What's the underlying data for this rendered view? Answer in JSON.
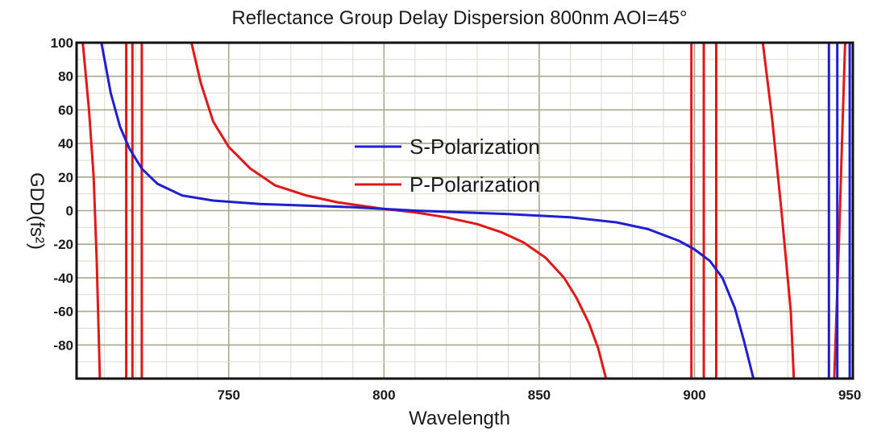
{
  "chart_data": {
    "type": "line",
    "title": "Reflectance Group Delay Dispersion 800nm  AOI=45°",
    "xlabel": "Wavelength",
    "ylabel": "GDD(fs²)",
    "xlim": [
      701,
      951
    ],
    "ylim": [
      -100,
      100
    ],
    "x_ticks": [
      750,
      800,
      850,
      900,
      950
    ],
    "x_tick_labels": [
      "750",
      "800",
      "850",
      "900",
      "950"
    ],
    "y_ticks": [
      100,
      80,
      60,
      40,
      20,
      0,
      -20,
      -40,
      -60,
      -80
    ],
    "y_tick_labels": [
      "100",
      "80",
      "60",
      "40",
      "20",
      "0",
      "-20",
      "-40",
      "-60",
      "-80"
    ],
    "grid": true,
    "legend_position": "center",
    "series": [
      {
        "name": "S-Polarization",
        "color": "#1f1fd0",
        "segments": [
          [
            [
              709,
              100
            ],
            [
              712,
              70
            ],
            [
              715,
              50
            ],
            [
              718,
              37
            ],
            [
              722,
              25
            ],
            [
              727,
              16
            ],
            [
              735,
              9
            ],
            [
              745,
              6
            ],
            [
              760,
              4
            ],
            [
              775,
              3
            ],
            [
              790,
              2
            ],
            [
              800,
              1
            ],
            [
              810,
              0
            ],
            [
              825,
              -1
            ],
            [
              840,
              -2
            ],
            [
              860,
              -4
            ],
            [
              875,
              -7
            ],
            [
              885,
              -11
            ],
            [
              895,
              -18
            ],
            [
              900,
              -23
            ],
            [
              905,
              -30
            ],
            [
              909,
              -40
            ],
            [
              913,
              -58
            ],
            [
              916,
              -78
            ],
            [
              919,
              -100
            ]
          ],
          [
            [
              943.3,
              100
            ],
            [
              943.3,
              -100
            ]
          ],
          [
            [
              946,
              -100
            ],
            [
              946,
              100
            ]
          ],
          [
            [
              950,
              100
            ],
            [
              950,
              -100
            ]
          ]
        ]
      },
      {
        "name": "P-Polarization",
        "color": "#e01818",
        "segments": [
          [
            [
              703,
              100
            ],
            [
              705,
              60
            ],
            [
              706.5,
              20
            ],
            [
              707.5,
              -30
            ],
            [
              708.5,
              -100
            ]
          ],
          [
            [
              717,
              100
            ],
            [
              717,
              -100
            ]
          ],
          [
            [
              719,
              100
            ],
            [
              719,
              -100
            ]
          ],
          [
            [
              722,
              100
            ],
            [
              722,
              -100
            ]
          ],
          [
            [
              738,
              100
            ],
            [
              741,
              76
            ],
            [
              745,
              53
            ],
            [
              750,
              38
            ],
            [
              757,
              25
            ],
            [
              765,
              15
            ],
            [
              775,
              9
            ],
            [
              785,
              5
            ],
            [
              800,
              1
            ],
            [
              810,
              -1
            ],
            [
              820,
              -4
            ],
            [
              830,
              -8
            ],
            [
              838,
              -13
            ],
            [
              845,
              -19
            ],
            [
              852,
              -28
            ],
            [
              858,
              -40
            ],
            [
              862,
              -52
            ],
            [
              866,
              -67
            ],
            [
              869,
              -82
            ],
            [
              871.5,
              -100
            ]
          ],
          [
            [
              899,
              100
            ],
            [
              899,
              -100
            ]
          ],
          [
            [
              903,
              100
            ],
            [
              903,
              -100
            ]
          ],
          [
            [
              907,
              100
            ],
            [
              907,
              -100
            ]
          ],
          [
            [
              922,
              100
            ],
            [
              925,
              55
            ],
            [
              928,
              0
            ],
            [
              931,
              -60
            ],
            [
              932,
              -100
            ]
          ],
          [
            [
              945,
              -100
            ],
            [
              946.5,
              -20
            ],
            [
              947.5,
              40
            ],
            [
              948.5,
              100
            ]
          ]
        ]
      }
    ]
  }
}
